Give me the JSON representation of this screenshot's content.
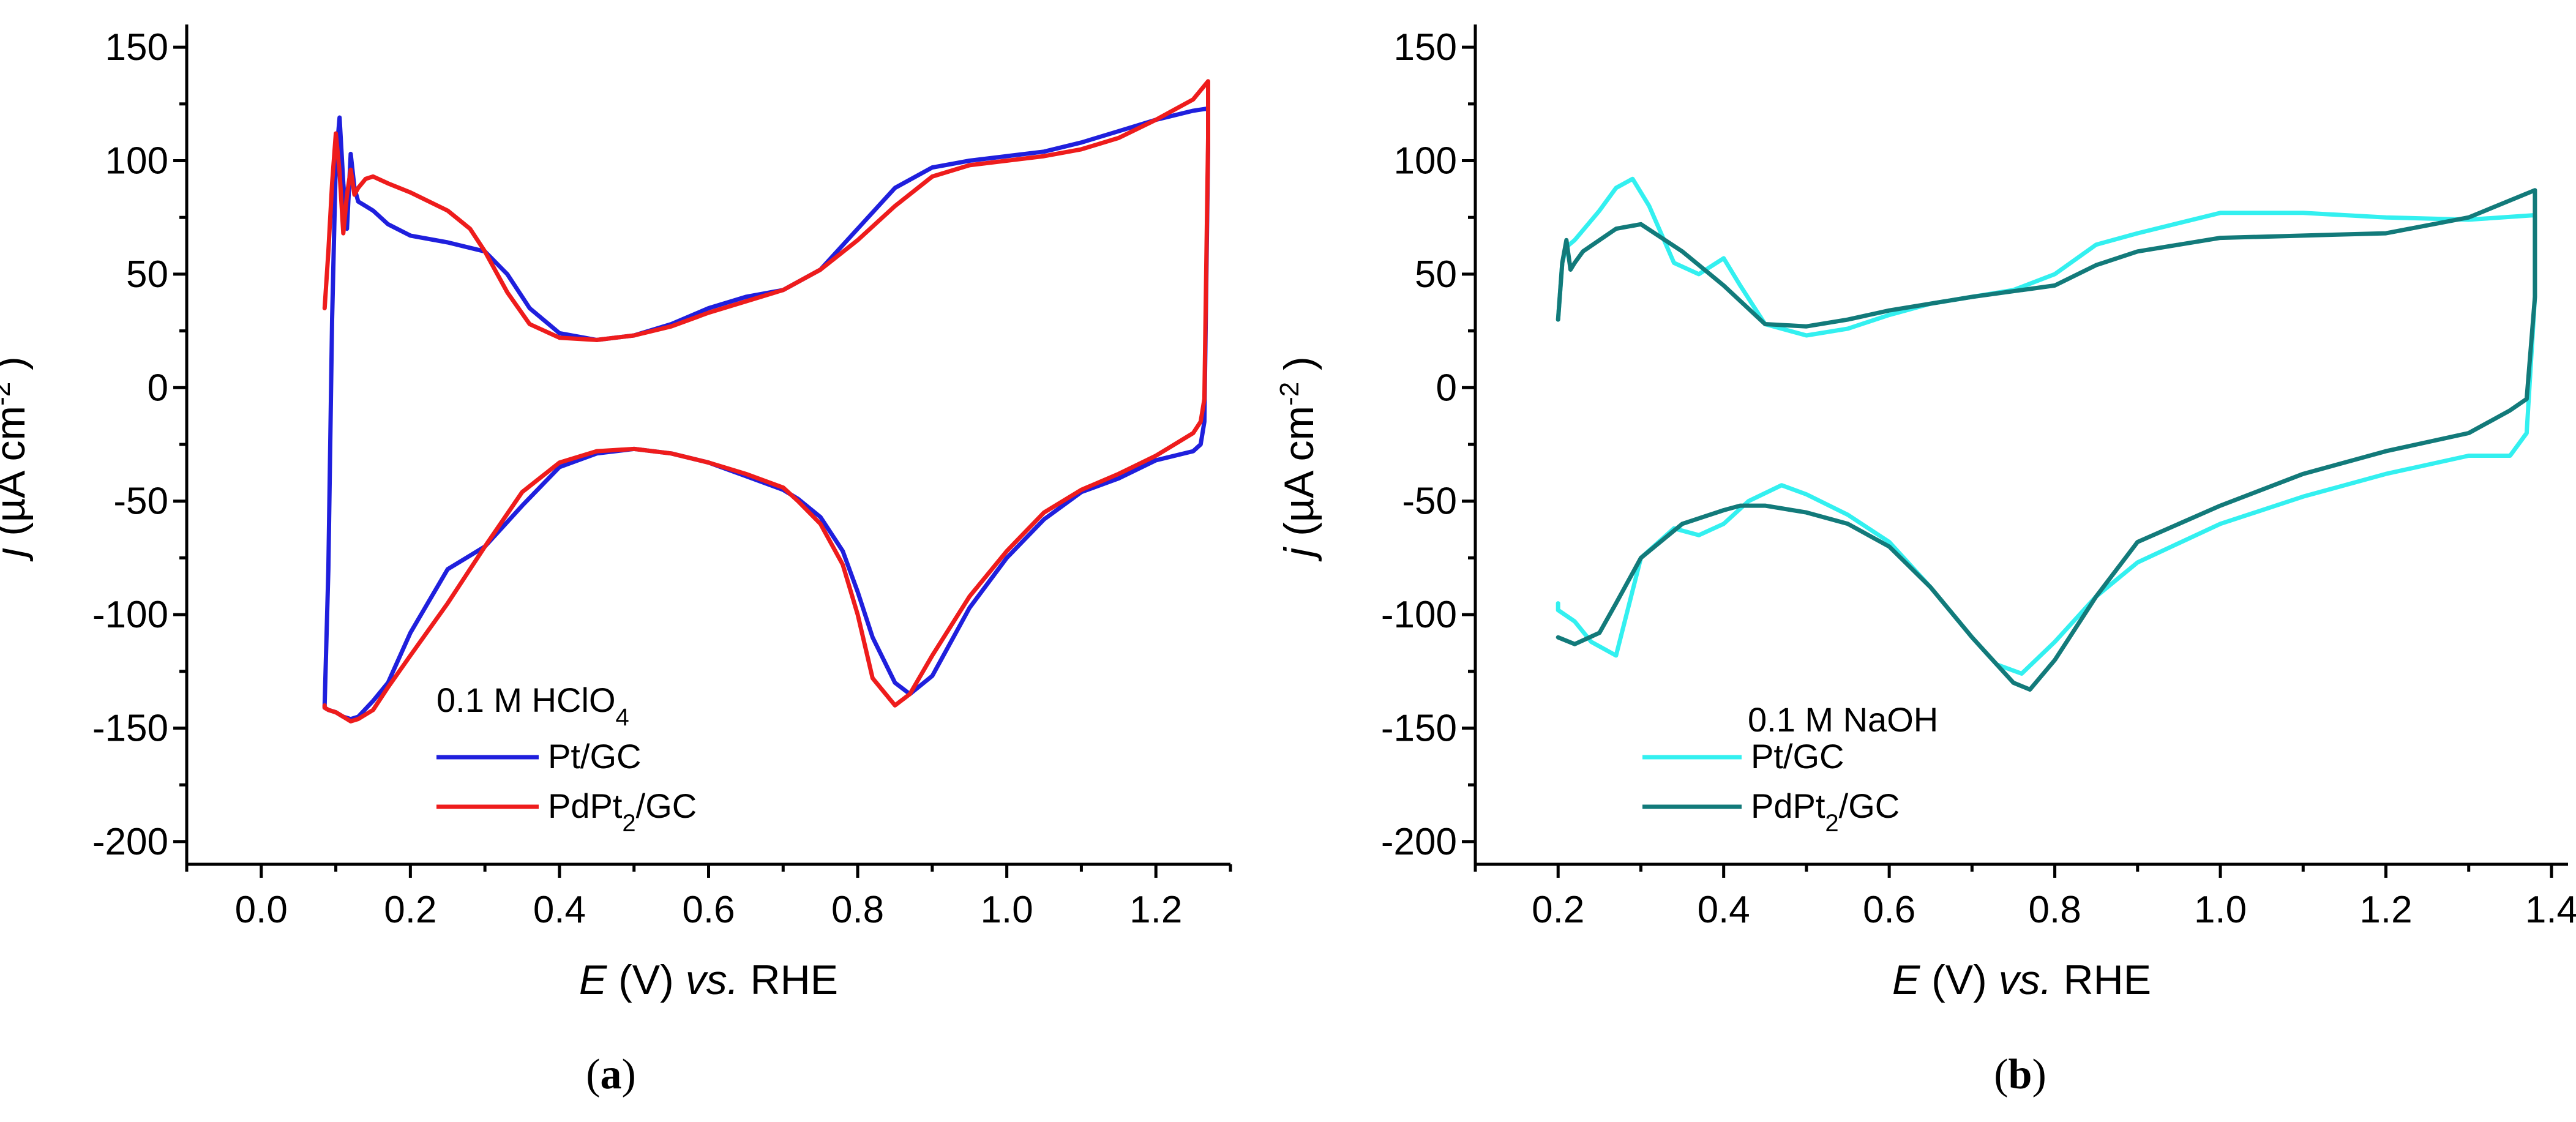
{
  "chart_data": [
    {
      "type": "line",
      "panel": "a",
      "caption": "(a)",
      "caption_parts": [
        "(",
        "a",
        ")"
      ],
      "xlabel": "E (V) vs. RHE",
      "xlabel_parts": {
        "var": "E",
        "unit": " (V) ",
        "vs": "vs.",
        "ref": " RHE"
      },
      "ylabel": "j (µA cm-2 )",
      "ylabel_parts": {
        "var": "j",
        "unit": " (µA cm",
        "exp": "-2",
        "close": " )"
      },
      "xlim": [
        -0.1,
        1.3
      ],
      "ylim": [
        -210,
        160
      ],
      "xticks": [
        0.0,
        0.2,
        0.4,
        0.6,
        0.8,
        1.0,
        1.2
      ],
      "xtick_labels": [
        "0.0",
        "0.2",
        "0.4",
        "0.6",
        "0.8",
        "1.0",
        "1.2"
      ],
      "yticks": [
        -200,
        -150,
        -100,
        -50,
        0,
        50,
        100,
        150
      ],
      "ytick_labels": [
        "-200",
        "-150",
        "-100",
        "-50",
        "0",
        "50",
        "100",
        "150"
      ],
      "annotation": "0.1 M HClO4",
      "annotation_parts": {
        "main": "0.1 M HClO",
        "sub": "4"
      },
      "legend_position": "bottom-left",
      "series": [
        {
          "name": "Pt/GC",
          "name_parts": {
            "main": "Pt/GC",
            "sub": "",
            "tail": ""
          },
          "color": "#1f1fdd",
          "x": [
            0.085,
            0.09,
            0.095,
            0.1,
            0.105,
            0.11,
            0.115,
            0.12,
            0.125,
            0.13,
            0.14,
            0.15,
            0.17,
            0.2,
            0.25,
            0.3,
            0.33,
            0.36,
            0.4,
            0.45,
            0.5,
            0.55,
            0.6,
            0.65,
            0.7,
            0.75,
            0.8,
            0.85,
            0.9,
            0.95,
            1.0,
            1.05,
            1.1,
            1.15,
            1.2,
            1.25,
            1.27,
            1.27,
            1.265,
            1.26,
            1.25,
            1.2,
            1.15,
            1.1,
            1.05,
            1.0,
            0.95,
            0.9,
            0.87,
            0.85,
            0.82,
            0.8,
            0.78,
            0.75,
            0.72,
            0.7,
            0.65,
            0.6,
            0.55,
            0.5,
            0.45,
            0.4,
            0.35,
            0.3,
            0.25,
            0.2,
            0.17,
            0.15,
            0.13,
            0.12,
            0.11,
            0.1,
            0.09,
            0.085,
            0.085
          ],
          "y": [
            -140,
            -80,
            30,
            100,
            119,
            90,
            70,
            103,
            88,
            82,
            80,
            78,
            72,
            67,
            64,
            60,
            50,
            35,
            24,
            21,
            23,
            28,
            35,
            40,
            43,
            52,
            70,
            88,
            97,
            100,
            102,
            104,
            108,
            113,
            118,
            122,
            123,
            105,
            -15,
            -25,
            -28,
            -32,
            -40,
            -46,
            -58,
            -75,
            -97,
            -127,
            -135,
            -130,
            -110,
            -90,
            -72,
            -57,
            -49,
            -45,
            -39,
            -33,
            -29,
            -27,
            -29,
            -35,
            -52,
            -70,
            -80,
            -108,
            -130,
            -138,
            -145,
            -146,
            -145,
            -143,
            -142,
            -141,
            -140
          ]
        },
        {
          "name": "PdPt2/GC",
          "name_parts": {
            "main": "PdPt",
            "sub": "2",
            "tail": "/GC"
          },
          "color": "#ee1c1c",
          "x": [
            0.085,
            0.09,
            0.095,
            0.1,
            0.105,
            0.11,
            0.115,
            0.12,
            0.125,
            0.13,
            0.14,
            0.15,
            0.17,
            0.2,
            0.25,
            0.28,
            0.3,
            0.33,
            0.36,
            0.4,
            0.45,
            0.5,
            0.55,
            0.6,
            0.65,
            0.7,
            0.75,
            0.8,
            0.85,
            0.9,
            0.95,
            1.0,
            1.05,
            1.1,
            1.15,
            1.2,
            1.25,
            1.27,
            1.27,
            1.265,
            1.26,
            1.25,
            1.2,
            1.15,
            1.1,
            1.05,
            1.0,
            0.95,
            0.9,
            0.87,
            0.85,
            0.82,
            0.8,
            0.78,
            0.75,
            0.72,
            0.7,
            0.65,
            0.6,
            0.55,
            0.5,
            0.45,
            0.4,
            0.35,
            0.3,
            0.25,
            0.2,
            0.17,
            0.15,
            0.13,
            0.12,
            0.11,
            0.1,
            0.09,
            0.085,
            0.085
          ],
          "y": [
            35,
            60,
            90,
            112,
            95,
            68,
            85,
            96,
            85,
            88,
            92,
            93,
            90,
            86,
            78,
            70,
            60,
            42,
            28,
            22,
            21,
            23,
            27,
            33,
            38,
            43,
            52,
            65,
            80,
            93,
            98,
            100,
            102,
            105,
            110,
            118,
            127,
            135,
            110,
            -5,
            -15,
            -20,
            -30,
            -38,
            -45,
            -55,
            -72,
            -92,
            -118,
            -135,
            -140,
            -128,
            -100,
            -78,
            -60,
            -50,
            -44,
            -38,
            -33,
            -29,
            -27,
            -28,
            -33,
            -46,
            -70,
            -95,
            -118,
            -132,
            -142,
            -146,
            -147,
            -145,
            -143,
            -142,
            -141,
            -140
          ]
        }
      ]
    },
    {
      "type": "line",
      "panel": "b",
      "caption": "(b)",
      "caption_parts": [
        "(",
        "b",
        ")"
      ],
      "xlabel": "E (V) vs. RHE",
      "xlabel_parts": {
        "var": "E",
        "unit": " (V) ",
        "vs": "vs.",
        "ref": " RHE"
      },
      "ylabel": "j (µA cm-2 )",
      "ylabel_parts": {
        "var": "j",
        "unit": " (µA cm",
        "exp": "-2",
        "close": " )"
      },
      "xlim": [
        0.1,
        1.42
      ],
      "ylim": [
        -210,
        160
      ],
      "xticks": [
        0.2,
        0.4,
        0.6,
        0.8,
        1.0,
        1.2,
        1.4
      ],
      "xtick_labels": [
        "0.2",
        "0.4",
        "0.6",
        "0.8",
        "1.0",
        "1.2",
        "1.4"
      ],
      "yticks": [
        -200,
        -150,
        -100,
        -50,
        0,
        50,
        100,
        150
      ],
      "ytick_labels": [
        "-200",
        "-150",
        "-100",
        "-50",
        "0",
        "50",
        "100",
        "150"
      ],
      "annotation": "0.1 M NaOH",
      "annotation_parts": {
        "main": "0.1 M NaOH",
        "sub": ""
      },
      "legend_position": "bottom-left",
      "series": [
        {
          "name": "Pt/GC",
          "name_parts": {
            "main": "Pt/GC",
            "sub": "",
            "tail": ""
          },
          "color": "#33f0f0",
          "x": [
            0.2,
            0.205,
            0.21,
            0.22,
            0.25,
            0.27,
            0.29,
            0.31,
            0.34,
            0.37,
            0.4,
            0.42,
            0.45,
            0.5,
            0.55,
            0.6,
            0.65,
            0.7,
            0.75,
            0.8,
            0.85,
            0.9,
            1.0,
            1.1,
            1.2,
            1.3,
            1.38,
            1.38,
            1.37,
            1.35,
            1.3,
            1.2,
            1.1,
            1.0,
            0.9,
            0.85,
            0.8,
            0.76,
            0.73,
            0.7,
            0.65,
            0.6,
            0.55,
            0.5,
            0.47,
            0.43,
            0.4,
            0.37,
            0.34,
            0.3,
            0.27,
            0.24,
            0.22,
            0.2,
            0.2
          ],
          "y": [
            30,
            55,
            62,
            65,
            78,
            88,
            92,
            80,
            55,
            50,
            57,
            45,
            28,
            23,
            26,
            32,
            37,
            40,
            43,
            50,
            63,
            68,
            77,
            77,
            75,
            74,
            76,
            40,
            -20,
            -30,
            -30,
            -38,
            -48,
            -60,
            -77,
            -92,
            -112,
            -126,
            -122,
            -110,
            -88,
            -68,
            -56,
            -47,
            -43,
            -50,
            -60,
            -65,
            -62,
            -75,
            -118,
            -112,
            -103,
            -98,
            -95
          ]
        },
        {
          "name": "PdPt2/GC",
          "name_parts": {
            "main": "PdPt",
            "sub": "2",
            "tail": "/GC"
          },
          "color": "#127a7a",
          "x": [
            0.2,
            0.205,
            0.21,
            0.215,
            0.22,
            0.23,
            0.25,
            0.27,
            0.3,
            0.35,
            0.4,
            0.45,
            0.5,
            0.55,
            0.6,
            0.7,
            0.8,
            0.85,
            0.9,
            1.0,
            1.1,
            1.2,
            1.3,
            1.38,
            1.38,
            1.37,
            1.35,
            1.3,
            1.2,
            1.1,
            1.0,
            0.9,
            0.85,
            0.8,
            0.77,
            0.75,
            0.72,
            0.7,
            0.65,
            0.6,
            0.55,
            0.5,
            0.45,
            0.42,
            0.4,
            0.35,
            0.3,
            0.27,
            0.25,
            0.22,
            0.2,
            0.2
          ],
          "y": [
            30,
            55,
            65,
            52,
            55,
            60,
            65,
            70,
            72,
            60,
            45,
            28,
            27,
            30,
            34,
            40,
            45,
            54,
            60,
            66,
            67,
            68,
            75,
            87,
            40,
            -5,
            -10,
            -20,
            -28,
            -38,
            -52,
            -68,
            -92,
            -120,
            -133,
            -130,
            -118,
            -110,
            -88,
            -70,
            -60,
            -55,
            -52,
            -52,
            -54,
            -60,
            -75,
            -95,
            -108,
            -113,
            -110,
            -110
          ]
        }
      ]
    }
  ]
}
